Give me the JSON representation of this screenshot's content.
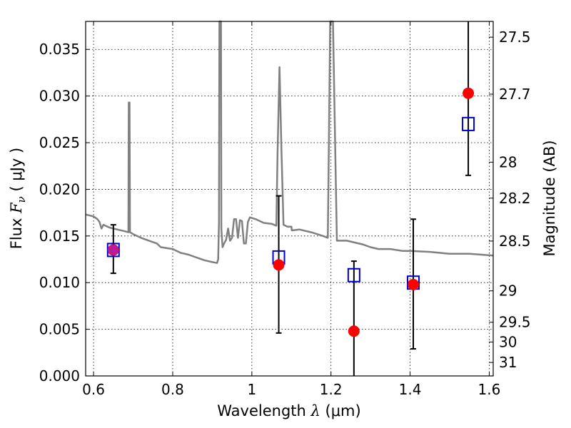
{
  "chart_data": {
    "type": "scatter",
    "title": "",
    "xlabel": {
      "prefix": "Wavelength  ",
      "symbol": "λ",
      "suffix": " (μm)"
    },
    "ylabel": {
      "prefix": "Flux  ",
      "symbol": "F",
      "subscript": "ν",
      "suffix": "  ( μJy )"
    },
    "y2label": "Magnitude (AB)",
    "xlim": [
      0.58,
      1.61
    ],
    "ylim": [
      0.0,
      0.038
    ],
    "grid": true,
    "x_ticks": [
      {
        "value": 0.6,
        "label": "0.6"
      },
      {
        "value": 0.8,
        "label": "0.8"
      },
      {
        "value": 1.0,
        "label": "1"
      },
      {
        "value": 1.2,
        "label": "1.2"
      },
      {
        "value": 1.4,
        "label": "1.4"
      },
      {
        "value": 1.6,
        "label": "1.6"
      }
    ],
    "y_ticks": [
      {
        "value": 0.0,
        "label": "0.000"
      },
      {
        "value": 0.005,
        "label": "0.005"
      },
      {
        "value": 0.01,
        "label": "0.010"
      },
      {
        "value": 0.015,
        "label": "0.015"
      },
      {
        "value": 0.02,
        "label": "0.020"
      },
      {
        "value": 0.025,
        "label": "0.025"
      },
      {
        "value": 0.03,
        "label": "0.030"
      },
      {
        "value": 0.035,
        "label": "0.035"
      }
    ],
    "y2_ticks": [
      {
        "label": "27.5",
        "mag": 27.5
      },
      {
        "label": "27.7",
        "mag": 27.7
      },
      {
        "label": "28",
        "mag": 28.0
      },
      {
        "label": "28.2",
        "mag": 28.2
      },
      {
        "label": "28.5",
        "mag": 28.5
      },
      {
        "label": "29",
        "mag": 29.0
      },
      {
        "label": "29.5",
        "mag": 29.5
      },
      {
        "label": "30",
        "mag": 30.0
      },
      {
        "label": "31",
        "mag": 31.0
      }
    ],
    "series": [
      {
        "kind": "spectrum",
        "color": "#808080",
        "points": [
          [
            0.58,
            0.0173
          ],
          [
            0.6,
            0.0171
          ],
          [
            0.61,
            0.0168
          ],
          [
            0.615,
            0.0165
          ],
          [
            0.62,
            0.0158
          ],
          [
            0.625,
            0.0162
          ],
          [
            0.64,
            0.0159
          ],
          [
            0.66,
            0.0157
          ],
          [
            0.68,
            0.0155
          ],
          [
            0.688,
            0.0154
          ],
          [
            0.689,
            0.0293
          ],
          [
            0.691,
            0.0293
          ],
          [
            0.692,
            0.0154
          ],
          [
            0.7,
            0.0152
          ],
          [
            0.72,
            0.0148
          ],
          [
            0.74,
            0.0145
          ],
          [
            0.76,
            0.0142
          ],
          [
            0.77,
            0.0138
          ],
          [
            0.8,
            0.0136
          ],
          [
            0.82,
            0.0132
          ],
          [
            0.84,
            0.013
          ],
          [
            0.86,
            0.0127
          ],
          [
            0.88,
            0.0124
          ],
          [
            0.9,
            0.0122
          ],
          [
            0.912,
            0.0121
          ],
          [
            0.915,
            0.0125
          ],
          [
            0.917,
            0.0165
          ],
          [
            0.918,
            0.038
          ],
          [
            0.922,
            0.038
          ],
          [
            0.923,
            0.0158
          ],
          [
            0.926,
            0.0138
          ],
          [
            0.93,
            0.0142
          ],
          [
            0.935,
            0.0146
          ],
          [
            0.94,
            0.0158
          ],
          [
            0.945,
            0.0145
          ],
          [
            0.95,
            0.0148
          ],
          [
            0.955,
            0.0168
          ],
          [
            0.96,
            0.0168
          ],
          [
            0.965,
            0.0148
          ],
          [
            0.97,
            0.0167
          ],
          [
            0.975,
            0.0166
          ],
          [
            0.98,
            0.0142
          ],
          [
            0.985,
            0.0142
          ],
          [
            0.99,
            0.0165
          ],
          [
            0.995,
            0.017
          ],
          [
            1.01,
            0.0168
          ],
          [
            1.03,
            0.0164
          ],
          [
            1.05,
            0.0163
          ],
          [
            1.062,
            0.0161
          ],
          [
            1.065,
            0.024
          ],
          [
            1.07,
            0.0331
          ],
          [
            1.075,
            0.024
          ],
          [
            1.08,
            0.0162
          ],
          [
            1.09,
            0.016
          ],
          [
            1.1,
            0.016
          ],
          [
            1.101,
            0.0156
          ],
          [
            1.12,
            0.0157
          ],
          [
            1.15,
            0.0154
          ],
          [
            1.18,
            0.015
          ],
          [
            1.192,
            0.0148
          ],
          [
            1.194,
            0.0221
          ],
          [
            1.198,
            0.038
          ],
          [
            1.205,
            0.038
          ],
          [
            1.212,
            0.0212
          ],
          [
            1.215,
            0.0145
          ],
          [
            1.24,
            0.0145
          ],
          [
            1.26,
            0.0143
          ],
          [
            1.28,
            0.0141
          ],
          [
            1.3,
            0.0138
          ],
          [
            1.32,
            0.0136
          ],
          [
            1.35,
            0.0136
          ],
          [
            1.38,
            0.0134
          ],
          [
            1.4,
            0.0134
          ],
          [
            1.45,
            0.0133
          ],
          [
            1.5,
            0.0131
          ],
          [
            1.55,
            0.0131
          ],
          [
            1.58,
            0.013
          ],
          [
            1.61,
            0.0129
          ]
        ]
      },
      {
        "kind": "model-photometry",
        "marker": "square",
        "color": "#0000cc",
        "points": [
          [
            0.65,
            0.0135
          ],
          [
            1.068,
            0.0127
          ],
          [
            1.258,
            0.0108
          ],
          [
            1.408,
            0.01
          ],
          [
            1.547,
            0.027
          ]
        ]
      },
      {
        "kind": "observed-photometry",
        "marker": "circle",
        "color": "#ff0000",
        "points": [
          {
            "x": 0.65,
            "y": 0.0135,
            "yerr": [
              0.011,
              0.0162
            ]
          },
          {
            "x": 1.068,
            "y": 0.0119,
            "yerr": [
              0.0046,
              0.0193
            ]
          },
          {
            "x": 1.258,
            "y": 0.0048,
            "yerr": [
              0.0,
              0.0123
            ]
          },
          {
            "x": 1.408,
            "y": 0.0098,
            "yerr": [
              0.0029,
              0.0168
            ]
          },
          {
            "x": 1.547,
            "y": 0.0303,
            "yerr": [
              0.0215,
              0.038
            ]
          }
        ]
      }
    ]
  }
}
